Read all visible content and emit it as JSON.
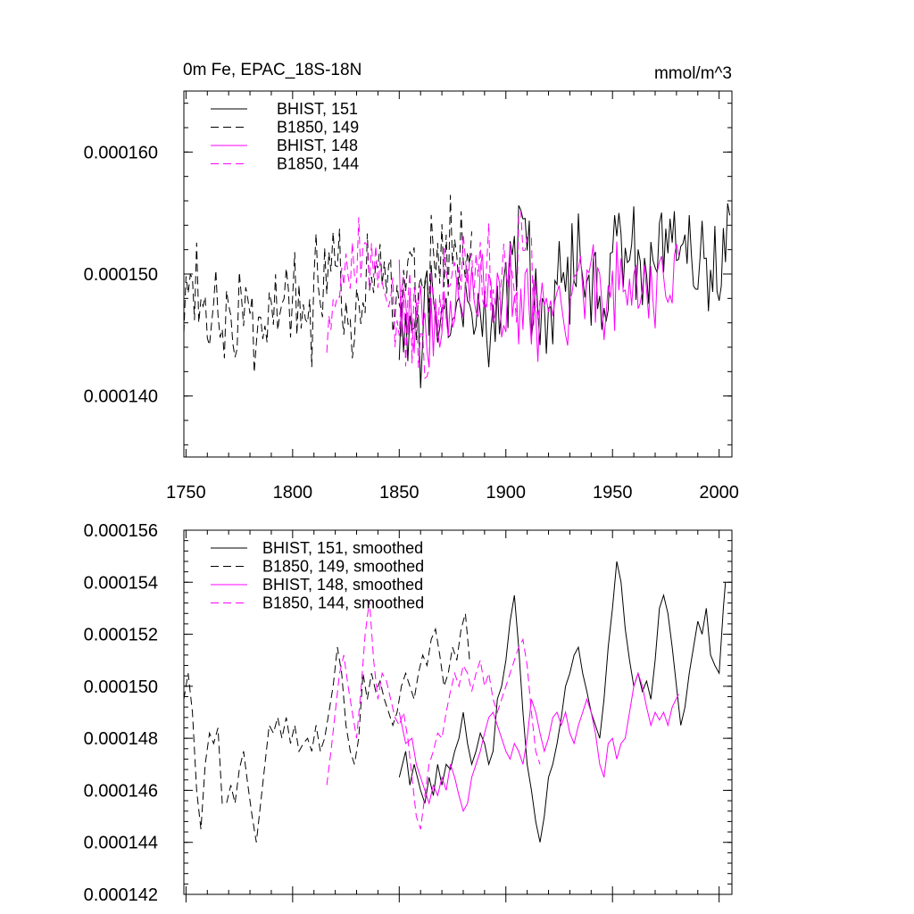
{
  "chart_data": [
    {
      "type": "line",
      "title": "0m Fe, EPAC_18S-18N",
      "units": "mmol/m^3",
      "xlim": [
        1749,
        2006
      ],
      "ylim": [
        0.000135,
        0.000165
      ],
      "xticks": [
        1750,
        1800,
        1850,
        1900,
        1950,
        2000
      ],
      "xtick_labels": [
        "1750",
        "1800",
        "1850",
        "1900",
        "1950",
        "2000"
      ],
      "yticks": [
        0.00014,
        0.00015,
        0.00016
      ],
      "ytick_labels": [
        "0.000140",
        "0.000150",
        "0.000160"
      ],
      "legend_position": "top-left",
      "series": [
        {
          "name": "BHIST, 151",
          "color": "#000000",
          "dash": "solid",
          "x_start": 1850,
          "x_end": 2005,
          "anchors_x": [
            1850,
            1855,
            1860,
            1865,
            1870,
            1875,
            1880,
            1885,
            1890,
            1895,
            1900,
            1905,
            1908,
            1912,
            1917,
            1920,
            1925,
            1930,
            1935,
            1940,
            1945,
            1950,
            1952,
            1955,
            1960,
            1965,
            1970,
            1975,
            1978,
            1980,
            1985,
            1990,
            1995,
            2000,
            2003,
            2005
          ],
          "anchors_y": [
            0.0001465,
            0.000146,
            0.0001465,
            0.000147,
            0.0001465,
            0.000147,
            0.000147,
            0.000148,
            0.0001475,
            0.000147,
            0.000149,
            0.000152,
            0.000153,
            0.000148,
            0.0001445,
            0.000146,
            0.000149,
            0.00015,
            0.000151,
            0.000149,
            0.000148,
            0.000153,
            0.0001545,
            0.000152,
            0.00015,
            0.00015,
            0.000151,
            0.0001525,
            0.000153,
            0.000151,
            0.0001505,
            0.000151,
            0.0001525,
            0.000151,
            0.0001535,
            0.000154
          ],
          "noise": 4e-06,
          "seed": 151
        },
        {
          "name": "B1850, 149",
          "color": "#000000",
          "dash": "dashed",
          "x_start": 1749,
          "x_end": 1884,
          "anchors_x": [
            1749,
            1752,
            1756,
            1760,
            1764,
            1768,
            1772,
            1776,
            1780,
            1784,
            1788,
            1792,
            1796,
            1800,
            1805,
            1810,
            1815,
            1818,
            1822,
            1826,
            1830,
            1835,
            1840,
            1845,
            1850,
            1855,
            1860,
            1865,
            1870,
            1875,
            1880,
            1884
          ],
          "anchors_y": [
            0.000144,
            0.0001505,
            0.000147,
            0.000145,
            0.000148,
            0.0001455,
            0.000146,
            0.000147,
            0.000147,
            0.000144,
            0.0001485,
            0.0001485,
            0.0001485,
            0.0001485,
            0.0001475,
            0.0001475,
            0.000149,
            0.0001515,
            0.00015,
            0.000148,
            0.000148,
            0.0001505,
            0.00015,
            0.0001495,
            0.0001485,
            0.00015,
            0.00015,
            0.000151,
            0.000152,
            0.0001515,
            0.0001525,
            0.000151
          ],
          "noise": 4.2e-06,
          "seed": 149
        },
        {
          "name": "BHIST, 148",
          "color": "#ff00ff",
          "dash": "solid",
          "x_start": 1850,
          "x_end": 1981,
          "anchors_x": [
            1850,
            1853,
            1856,
            1860,
            1865,
            1870,
            1875,
            1880,
            1885,
            1890,
            1895,
            1900,
            1905,
            1910,
            1915,
            1920,
            1925,
            1930,
            1935,
            1940,
            1945,
            1950,
            1955,
            1960,
            1965,
            1970,
            1975,
            1981
          ],
          "anchors_y": [
            0.000149,
            0.000148,
            0.0001475,
            0.0001465,
            0.000146,
            0.0001455,
            0.0001465,
            0.000148,
            0.000149,
            0.0001495,
            0.0001485,
            0.000148,
            0.0001475,
            0.0001475,
            0.000148,
            0.000148,
            0.0001485,
            0.000149,
            0.0001495,
            0.0001485,
            0.000148,
            0.000148,
            0.0001485,
            0.000149,
            0.0001495,
            0.00015,
            0.000149,
            0.0001495
          ],
          "noise": 4e-06,
          "seed": 148
        },
        {
          "name": "B1850, 144",
          "color": "#ff00ff",
          "dash": "dashed",
          "x_start": 1816,
          "x_end": 1916,
          "anchors_x": [
            1816,
            1820,
            1824,
            1828,
            1832,
            1835,
            1838,
            1842,
            1846,
            1850,
            1855,
            1860,
            1865,
            1870,
            1875,
            1880,
            1885,
            1890,
            1895,
            1900,
            1905,
            1910,
            1916
          ],
          "anchors_y": [
            0.000146,
            0.0001485,
            0.000151,
            0.000149,
            0.0001505,
            0.000153,
            0.00015,
            0.0001505,
            0.000149,
            0.0001475,
            0.0001455,
            0.0001445,
            0.000146,
            0.0001485,
            0.00015,
            0.0001505,
            0.00015,
            0.0001505,
            0.000149,
            0.00015,
            0.000151,
            0.0001515,
            0.000147
          ],
          "noise": 4.5e-06,
          "seed": 144
        }
      ]
    },
    {
      "type": "line",
      "title": "",
      "xlim": [
        1749,
        2006
      ],
      "ylim": [
        0.000142,
        0.000156
      ],
      "xticks": [
        1750,
        1800,
        1850,
        1900,
        1950,
        2000
      ],
      "yticks": [
        0.000142,
        0.000144,
        0.000146,
        0.000148,
        0.00015,
        0.000152,
        0.000154,
        0.000156
      ],
      "ytick_labels": [
        "0.000142",
        "0.000144",
        "0.000146",
        "0.000148",
        "0.000150",
        "0.000152",
        "0.000154",
        "0.000156"
      ],
      "legend_position": "top-left",
      "series": [
        {
          "name": "BHIST, 151, smoothed",
          "color": "#000000",
          "dash": "solid",
          "x": [
            1850,
            1853,
            1855,
            1857,
            1860,
            1862,
            1864,
            1866,
            1868,
            1870,
            1872,
            1874,
            1876,
            1878,
            1880,
            1882,
            1884,
            1886,
            1888,
            1890,
            1892,
            1894,
            1896,
            1898,
            1900,
            1902,
            1904,
            1906,
            1908,
            1910,
            1912,
            1914,
            1916,
            1918,
            1920,
            1922,
            1924,
            1926,
            1928,
            1930,
            1932,
            1934,
            1936,
            1938,
            1940,
            1942,
            1944,
            1946,
            1948,
            1950,
            1952,
            1954,
            1956,
            1958,
            1960,
            1962,
            1964,
            1966,
            1968,
            1970,
            1972,
            1974,
            1976,
            1978,
            1980,
            1982,
            1984,
            1986,
            1988,
            1990,
            1992,
            1994,
            1996,
            1998,
            2000,
            2002,
            2003
          ],
          "y": [
            0.0001465,
            0.0001475,
            0.0001462,
            0.000147,
            0.000146,
            0.0001455,
            0.0001465,
            0.0001458,
            0.000147,
            0.0001462,
            0.000147,
            0.0001468,
            0.0001475,
            0.000148,
            0.000149,
            0.0001478,
            0.000147,
            0.0001475,
            0.0001482,
            0.0001478,
            0.000147,
            0.0001475,
            0.0001495,
            0.00015,
            0.000151,
            0.0001525,
            0.0001535,
            0.0001515,
            0.000149,
            0.000147,
            0.000146,
            0.0001448,
            0.000144,
            0.000145,
            0.0001465,
            0.000147,
            0.0001478,
            0.0001488,
            0.00015,
            0.0001505,
            0.0001512,
            0.0001515,
            0.0001505,
            0.0001498,
            0.000149,
            0.0001485,
            0.000148,
            0.0001495,
            0.0001515,
            0.000153,
            0.0001548,
            0.000154,
            0.0001522,
            0.000151,
            0.00015,
            0.0001505,
            0.0001498,
            0.0001502,
            0.0001495,
            0.000151,
            0.000153,
            0.0001535,
            0.0001528,
            0.0001515,
            0.00015,
            0.0001485,
            0.0001492,
            0.0001505,
            0.0001515,
            0.0001525,
            0.000152,
            0.000153,
            0.0001512,
            0.0001508,
            0.0001505,
            0.000153,
            0.000154
          ]
        },
        {
          "name": "B1850, 149, smoothed",
          "color": "#000000",
          "dash": "dashed",
          "x": [
            1749,
            1751,
            1753,
            1755,
            1757,
            1759,
            1761,
            1763,
            1765,
            1767,
            1769,
            1771,
            1773,
            1775,
            1777,
            1779,
            1781,
            1783,
            1785,
            1787,
            1789,
            1791,
            1793,
            1795,
            1797,
            1799,
            1801,
            1803,
            1805,
            1807,
            1809,
            1811,
            1813,
            1815,
            1817,
            1819,
            1821,
            1823,
            1825,
            1827,
            1829,
            1831,
            1833,
            1835,
            1837,
            1839,
            1841,
            1843,
            1845,
            1847,
            1849,
            1851,
            1853,
            1855,
            1857,
            1859,
            1861,
            1863,
            1865,
            1867,
            1869,
            1871,
            1873,
            1875,
            1877,
            1879,
            1881,
            1883
          ],
          "y": [
            0.0001495,
            0.0001505,
            0.000149,
            0.000146,
            0.0001445,
            0.000147,
            0.0001482,
            0.0001478,
            0.0001484,
            0.0001455,
            0.0001455,
            0.0001462,
            0.0001455,
            0.0001468,
            0.0001475,
            0.0001462,
            0.000145,
            0.000144,
            0.0001455,
            0.000147,
            0.0001485,
            0.0001482,
            0.0001488,
            0.000148,
            0.0001488,
            0.0001478,
            0.0001485,
            0.0001475,
            0.0001478,
            0.000148,
            0.0001475,
            0.0001485,
            0.0001475,
            0.000148,
            0.000149,
            0.00015,
            0.0001515,
            0.0001505,
            0.0001485,
            0.0001475,
            0.000147,
            0.000148,
            0.0001505,
            0.0001495,
            0.0001505,
            0.0001498,
            0.0001502,
            0.0001495,
            0.000149,
            0.0001485,
            0.000149,
            0.00015,
            0.0001505,
            0.00015,
            0.0001495,
            0.0001505,
            0.0001512,
            0.0001508,
            0.0001518,
            0.0001522,
            0.0001512,
            0.00015,
            0.0001505,
            0.0001515,
            0.000151,
            0.0001522,
            0.0001528,
            0.000151
          ]
        },
        {
          "name": "BHIST, 148, smoothed",
          "color": "#ff00ff",
          "dash": "solid",
          "x": [
            1850,
            1853,
            1856,
            1858,
            1860,
            1862,
            1864,
            1866,
            1868,
            1870,
            1872,
            1874,
            1876,
            1878,
            1880,
            1882,
            1884,
            1886,
            1888,
            1890,
            1892,
            1894,
            1896,
            1898,
            1900,
            1902,
            1904,
            1906,
            1908,
            1910,
            1912,
            1914,
            1916,
            1918,
            1920,
            1922,
            1924,
            1926,
            1928,
            1930,
            1932,
            1934,
            1936,
            1938,
            1940,
            1942,
            1944,
            1946,
            1948,
            1950,
            1952,
            1954,
            1956,
            1958,
            1960,
            1962,
            1964,
            1966,
            1968,
            1970,
            1972,
            1974,
            1976,
            1978,
            1981
          ],
          "y": [
            0.000149,
            0.0001478,
            0.000148,
            0.000147,
            0.0001465,
            0.000146,
            0.0001455,
            0.0001462,
            0.0001458,
            0.0001465,
            0.000146,
            0.000147,
            0.0001465,
            0.0001458,
            0.0001452,
            0.0001455,
            0.0001465,
            0.000147,
            0.0001475,
            0.0001482,
            0.0001488,
            0.000149,
            0.0001485,
            0.000148,
            0.0001475,
            0.0001472,
            0.0001478,
            0.0001475,
            0.000147,
            0.000148,
            0.0001495,
            0.000149,
            0.0001482,
            0.0001475,
            0.000148,
            0.0001488,
            0.000149,
            0.0001485,
            0.000149,
            0.0001482,
            0.0001478,
            0.0001485,
            0.000149,
            0.0001495,
            0.000149,
            0.0001482,
            0.000147,
            0.0001465,
            0.0001478,
            0.000148,
            0.0001472,
            0.0001478,
            0.000148,
            0.000149,
            0.00015,
            0.0001505,
            0.00015,
            0.0001492,
            0.0001485,
            0.000149,
            0.0001487,
            0.000149,
            0.0001485,
            0.0001492,
            0.0001497
          ]
        },
        {
          "name": "B1850, 144, smoothed",
          "color": "#ff00ff",
          "dash": "dashed",
          "x": [
            1816,
            1818,
            1820,
            1822,
            1824,
            1826,
            1828,
            1830,
            1832,
            1834,
            1836,
            1838,
            1840,
            1842,
            1844,
            1846,
            1848,
            1850,
            1852,
            1854,
            1856,
            1858,
            1860,
            1862,
            1864,
            1866,
            1868,
            1870,
            1872,
            1874,
            1876,
            1878,
            1880,
            1882,
            1884,
            1886,
            1888,
            1890,
            1892,
            1894,
            1896,
            1898,
            1900,
            1902,
            1904,
            1906,
            1908,
            1910,
            1912,
            1914,
            1916
          ],
          "y": [
            0.0001462,
            0.0001475,
            0.000149,
            0.0001505,
            0.0001512,
            0.00015,
            0.000149,
            0.000148,
            0.0001498,
            0.000152,
            0.0001533,
            0.000151,
            0.0001495,
            0.0001505,
            0.0001502,
            0.0001495,
            0.0001488,
            0.0001485,
            0.000149,
            0.000148,
            0.0001465,
            0.000145,
            0.0001445,
            0.0001458,
            0.000147,
            0.0001475,
            0.0001482,
            0.000148,
            0.000149,
            0.0001498,
            0.0001505,
            0.00015,
            0.0001508,
            0.0001505,
            0.0001498,
            0.0001505,
            0.000151,
            0.00015,
            0.0001505,
            0.0001495,
            0.000149,
            0.0001495,
            0.00015,
            0.0001505,
            0.000151,
            0.0001515,
            0.0001518,
            0.0001508,
            0.000149,
            0.0001475,
            0.000147
          ]
        }
      ]
    }
  ]
}
